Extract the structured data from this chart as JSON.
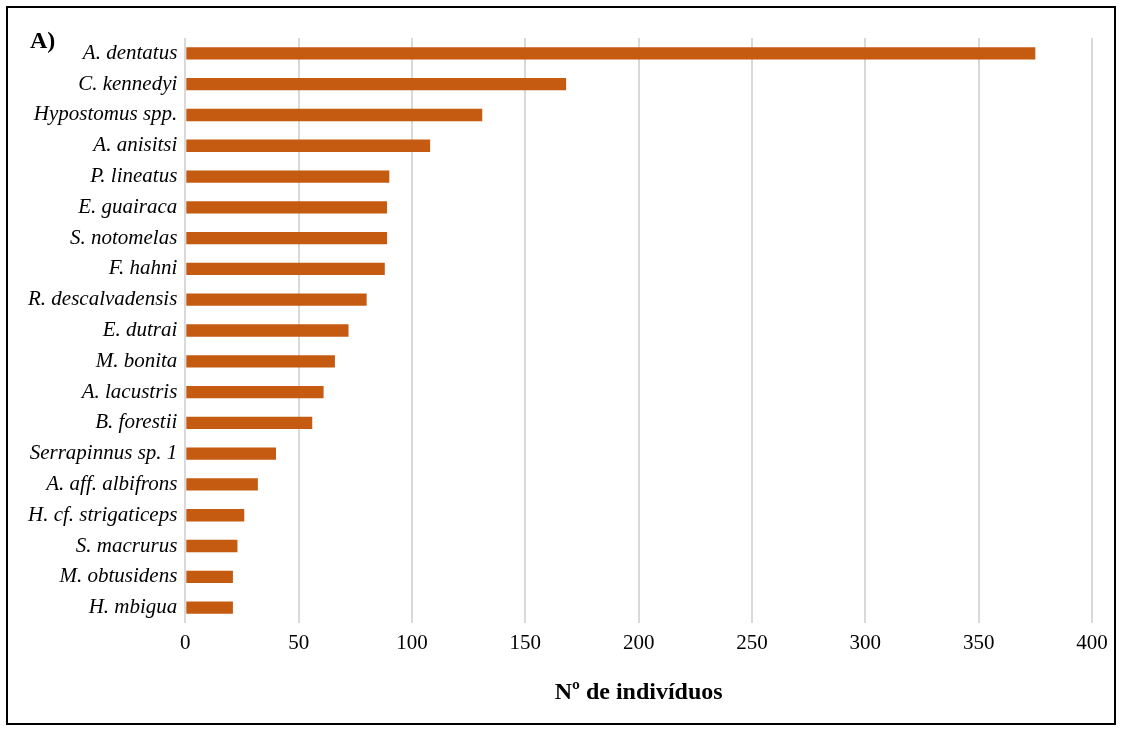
{
  "chart_data": {
    "type": "bar",
    "orientation": "horizontal",
    "title": "A)",
    "xlabel": "Nº de indivíduos",
    "categories": [
      "A. dentatus",
      "C. kennedyi",
      "Hypostomus spp.",
      "A. anisitsi",
      "P. lineatus",
      "E. guairaca",
      "S. notomelas",
      "F. hahni",
      "R. descalvadensis",
      "E. dutrai",
      "M. bonita",
      "A. lacustris",
      "B. forestii",
      "Serrapinnus sp. 1",
      "A. aff. albifrons",
      "H. cf. strigaticeps",
      "S. macrurus",
      "M. obtusidens",
      "H. mbigua"
    ],
    "values": [
      375,
      168,
      131,
      108,
      90,
      89,
      89,
      88,
      80,
      72,
      66,
      61,
      56,
      40,
      32,
      26,
      23,
      21,
      21
    ],
    "color": "#c55a11",
    "xlim": [
      0,
      400
    ],
    "xticks": [
      0,
      50,
      100,
      150,
      200,
      250,
      300,
      350,
      400
    ],
    "grid": "x"
  }
}
